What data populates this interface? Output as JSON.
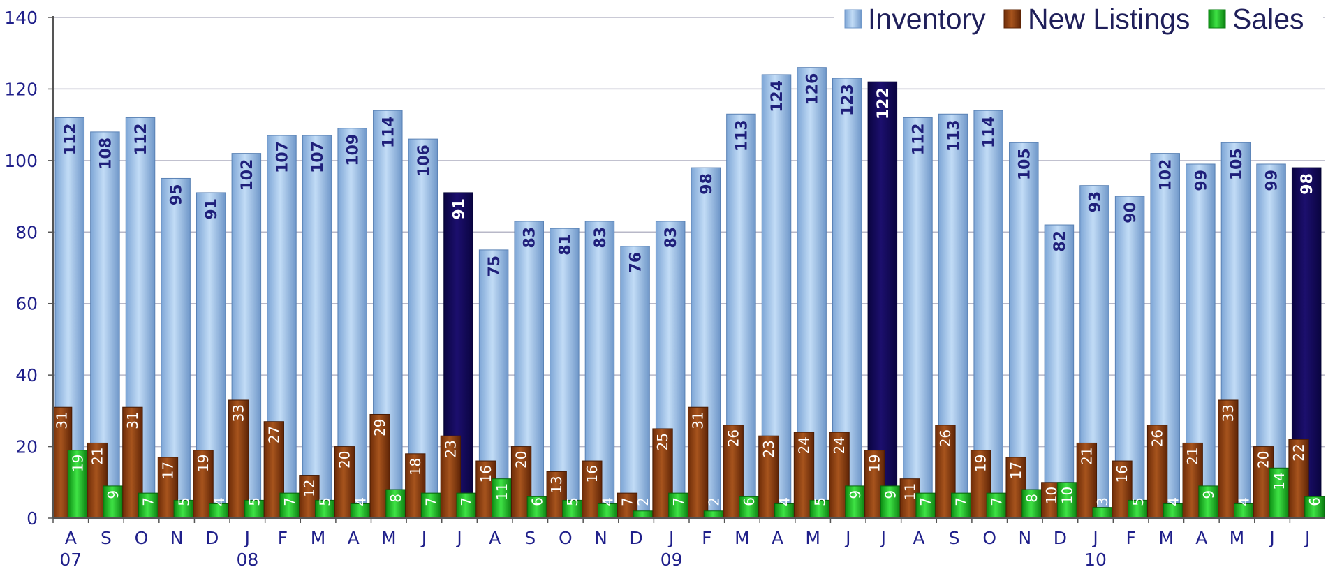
{
  "chart_data": {
    "type": "bar",
    "categories": [
      "A",
      "S",
      "O",
      "N",
      "D",
      "J",
      "F",
      "M",
      "A",
      "M",
      "J",
      "J",
      "A",
      "S",
      "O",
      "N",
      "D",
      "J",
      "F",
      "M",
      "A",
      "M",
      "J",
      "J",
      "A",
      "S",
      "O",
      "N",
      "D",
      "J",
      "F",
      "M",
      "A",
      "M",
      "J",
      "J"
    ],
    "year_labels": [
      {
        "index": 0,
        "text": "07"
      },
      {
        "index": 5,
        "text": "08"
      },
      {
        "index": 17,
        "text": "09"
      },
      {
        "index": 29,
        "text": "10"
      }
    ],
    "highlighted_indices": [
      11,
      23,
      35
    ],
    "series": [
      {
        "name": "Inventory",
        "values": [
          112,
          108,
          112,
          95,
          91,
          102,
          107,
          107,
          109,
          114,
          106,
          91,
          75,
          83,
          81,
          83,
          76,
          83,
          98,
          113,
          124,
          126,
          123,
          122,
          112,
          113,
          114,
          105,
          82,
          93,
          90,
          102,
          99,
          105,
          99,
          98
        ]
      },
      {
        "name": "New Listings",
        "values": [
          31,
          21,
          31,
          17,
          19,
          33,
          27,
          12,
          20,
          29,
          18,
          23,
          16,
          20,
          13,
          16,
          7,
          25,
          31,
          26,
          23,
          24,
          24,
          19,
          11,
          26,
          19,
          17,
          10,
          21,
          16,
          26,
          21,
          33,
          20,
          22
        ]
      },
      {
        "name": "Sales",
        "values": [
          19,
          9,
          7,
          5,
          4,
          5,
          7,
          5,
          4,
          8,
          7,
          7,
          11,
          6,
          5,
          4,
          2,
          7,
          2,
          6,
          4,
          5,
          9,
          9,
          7,
          7,
          7,
          8,
          10,
          3,
          5,
          4,
          9,
          4,
          14,
          6
        ]
      }
    ],
    "ylim": [
      0,
      140
    ],
    "yticks": [
      0,
      20,
      40,
      60,
      80,
      100,
      120,
      140
    ],
    "grid": true,
    "legend": "top-right",
    "colors": {
      "inventory": "#9cc3ee",
      "inventory_highlight": "#14085a",
      "new_listings": "#8b3f12",
      "sales": "#15b81c",
      "axis_text": "#1f1f8a",
      "grid": "#b8b8c8"
    }
  }
}
